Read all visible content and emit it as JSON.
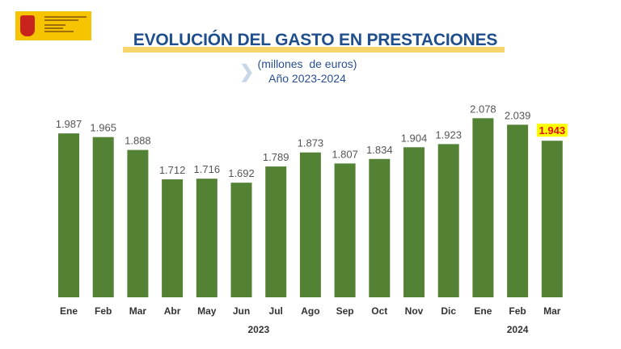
{
  "logo": {
    "text": "VICEPRESIDENCIA SEGUNDA DEL GOBIERNO · MINISTERIO DE TRABAJO Y ECONOMÍA SOCIAL"
  },
  "chart_data": {
    "type": "bar",
    "title": "EVOLUCIÓN DEL GASTO EN PRESTACIONES",
    "subtitle": "(millones  de euros)",
    "subtitle2": "Año 2023-2024",
    "categories": [
      "Ene",
      "Feb",
      "Mar",
      "Abr",
      "May",
      "Jun",
      "Jul",
      "Ago",
      "Sep",
      "Oct",
      "Nov",
      "Dic",
      "Ene",
      "Feb",
      "Mar"
    ],
    "years": [
      {
        "label": "2023",
        "span": [
          0,
          11
        ]
      },
      {
        "label": "2024",
        "span": [
          12,
          14
        ]
      }
    ],
    "values": [
      1987,
      1965,
      1888,
      1712,
      1716,
      1692,
      1789,
      1873,
      1807,
      1834,
      1904,
      1923,
      2078,
      2039,
      1943
    ],
    "labels": [
      "1.987",
      "1.965",
      "1.888",
      "1.712",
      "1.716",
      "1.692",
      "1.789",
      "1.873",
      "1.807",
      "1.834",
      "1.904",
      "1.923",
      "2.078",
      "2.039",
      "1.943"
    ],
    "highlight_index": 14,
    "ylim": [
      1006,
      2200
    ],
    "grid": false,
    "colors": {
      "bar": "#548235",
      "label": "#555555",
      "highlight_text": "#e01010",
      "highlight_bg": "#ffff00",
      "title": "#1f4e8c"
    }
  }
}
